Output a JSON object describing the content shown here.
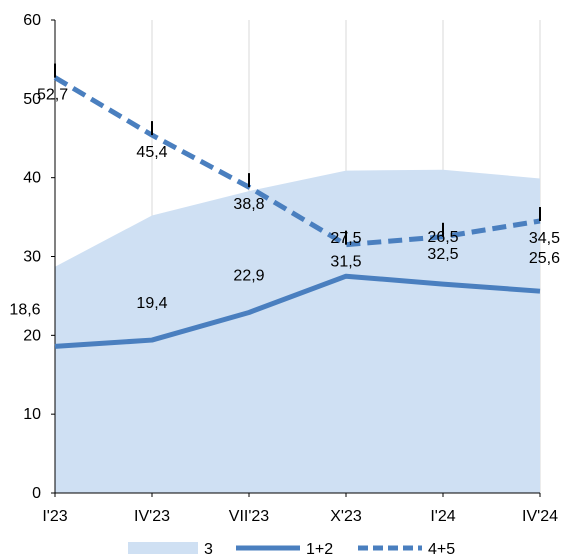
{
  "chart_data": {
    "type": "line",
    "categories": [
      "I'23",
      "IV'23",
      "VII'23",
      "X'23",
      "I'24",
      "IV'24"
    ],
    "ylim": [
      0,
      60
    ],
    "yticks": [
      0,
      10,
      20,
      30,
      40,
      50,
      60
    ],
    "grid": "vertical",
    "legend_position": "bottom",
    "series": [
      {
        "name": "3",
        "kind": "area",
        "color": "#cfe0f3",
        "values": [
          28.7,
          35.2,
          38.3,
          40.9,
          41.0,
          39.9
        ]
      },
      {
        "name": "1+2",
        "kind": "line",
        "style": "solid",
        "color": "#4a7fbf",
        "values": [
          18.6,
          19.4,
          22.9,
          27.5,
          26.5,
          25.6
        ],
        "labels": [
          "18,6",
          "19,4",
          "22,9",
          "27,5",
          "26,5",
          "25,6"
        ]
      },
      {
        "name": "4+5",
        "kind": "line",
        "style": "dashed",
        "color": "#4a7fbf",
        "values": [
          52.7,
          45.4,
          38.8,
          31.5,
          32.5,
          34.5
        ],
        "labels": [
          "52,7",
          "45,4",
          "38,8",
          "31,5",
          "32,5",
          "34,5"
        ]
      }
    ]
  }
}
